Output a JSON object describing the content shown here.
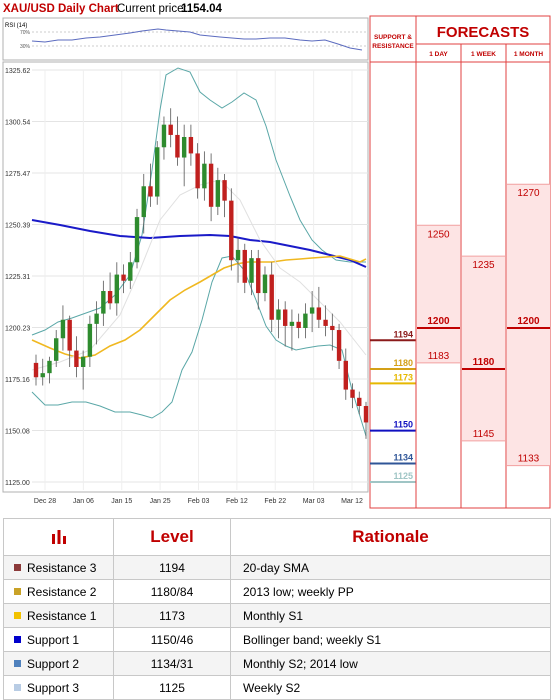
{
  "header": {
    "pair": "XAU/USD Daily Chart",
    "price_label": "Current price:",
    "price_value": "1154.04"
  },
  "rsi": {
    "label": "RSI (14)",
    "levels": [
      "70%",
      "30%"
    ]
  },
  "chart_data": {
    "type": "candlestick",
    "title": "XAU/USD Daily Chart",
    "ylim": [
      1125.0,
      1325.62
    ],
    "y_ticks": [
      "1325.62",
      "1300.54",
      "1275.47",
      "1250.39",
      "1225.31",
      "1200.23",
      "1175.16",
      "1150.08",
      "1125.00"
    ],
    "x_ticks": [
      "Dec 28",
      "Jan 06",
      "Jan 15",
      "Jan 25",
      "Feb 03",
      "Feb 12",
      "Feb 22",
      "Mar 03",
      "Mar 12"
    ],
    "candles": [
      {
        "o": 1183,
        "h": 1187,
        "l": 1172,
        "c": 1176
      },
      {
        "o": 1176,
        "h": 1185,
        "l": 1172,
        "c": 1178
      },
      {
        "o": 1178,
        "h": 1186,
        "l": 1173,
        "c": 1184
      },
      {
        "o": 1184,
        "h": 1199,
        "l": 1181,
        "c": 1195
      },
      {
        "o": 1195,
        "h": 1211,
        "l": 1189,
        "c": 1204
      },
      {
        "o": 1204,
        "h": 1206,
        "l": 1181,
        "c": 1189
      },
      {
        "o": 1189,
        "h": 1196,
        "l": 1176,
        "c": 1181
      },
      {
        "o": 1181,
        "h": 1189,
        "l": 1170,
        "c": 1186
      },
      {
        "o": 1186,
        "h": 1206,
        "l": 1181,
        "c": 1202
      },
      {
        "o": 1202,
        "h": 1213,
        "l": 1192,
        "c": 1207
      },
      {
        "o": 1207,
        "h": 1223,
        "l": 1201,
        "c": 1218
      },
      {
        "o": 1218,
        "h": 1227,
        "l": 1209,
        "c": 1212
      },
      {
        "o": 1212,
        "h": 1232,
        "l": 1206,
        "c": 1226
      },
      {
        "o": 1226,
        "h": 1231,
        "l": 1217,
        "c": 1223
      },
      {
        "o": 1223,
        "h": 1237,
        "l": 1219,
        "c": 1232
      },
      {
        "o": 1232,
        "h": 1258,
        "l": 1229,
        "c": 1254
      },
      {
        "o": 1254,
        "h": 1275,
        "l": 1246,
        "c": 1269
      },
      {
        "o": 1269,
        "h": 1280,
        "l": 1259,
        "c": 1264
      },
      {
        "o": 1264,
        "h": 1291,
        "l": 1260,
        "c": 1288
      },
      {
        "o": 1288,
        "h": 1303,
        "l": 1282,
        "c": 1299
      },
      {
        "o": 1299,
        "h": 1307,
        "l": 1288,
        "c": 1294
      },
      {
        "o": 1294,
        "h": 1303,
        "l": 1279,
        "c": 1283
      },
      {
        "o": 1283,
        "h": 1299,
        "l": 1269,
        "c": 1293
      },
      {
        "o": 1293,
        "h": 1299,
        "l": 1279,
        "c": 1285
      },
      {
        "o": 1285,
        "h": 1290,
        "l": 1263,
        "c": 1268
      },
      {
        "o": 1268,
        "h": 1286,
        "l": 1262,
        "c": 1280
      },
      {
        "o": 1280,
        "h": 1285,
        "l": 1252,
        "c": 1259
      },
      {
        "o": 1259,
        "h": 1278,
        "l": 1255,
        "c": 1272
      },
      {
        "o": 1272,
        "h": 1275,
        "l": 1254,
        "c": 1262
      },
      {
        "o": 1262,
        "h": 1268,
        "l": 1228,
        "c": 1233
      },
      {
        "o": 1233,
        "h": 1244,
        "l": 1222,
        "c": 1238
      },
      {
        "o": 1238,
        "h": 1241,
        "l": 1217,
        "c": 1222
      },
      {
        "o": 1222,
        "h": 1238,
        "l": 1216,
        "c": 1234
      },
      {
        "o": 1234,
        "h": 1238,
        "l": 1209,
        "c": 1217
      },
      {
        "o": 1217,
        "h": 1230,
        "l": 1213,
        "c": 1226
      },
      {
        "o": 1226,
        "h": 1232,
        "l": 1198,
        "c": 1204
      },
      {
        "o": 1204,
        "h": 1214,
        "l": 1195,
        "c": 1209
      },
      {
        "o": 1209,
        "h": 1213,
        "l": 1191,
        "c": 1201
      },
      {
        "o": 1201,
        "h": 1209,
        "l": 1189,
        "c": 1203
      },
      {
        "o": 1203,
        "h": 1207,
        "l": 1195,
        "c": 1200
      },
      {
        "o": 1200,
        "h": 1212,
        "l": 1195,
        "c": 1207
      },
      {
        "o": 1207,
        "h": 1218,
        "l": 1198,
        "c": 1210
      },
      {
        "o": 1210,
        "h": 1220,
        "l": 1200,
        "c": 1204
      },
      {
        "o": 1204,
        "h": 1211,
        "l": 1196,
        "c": 1201
      },
      {
        "o": 1201,
        "h": 1207,
        "l": 1189,
        "c": 1199
      },
      {
        "o": 1199,
        "h": 1202,
        "l": 1180,
        "c": 1184
      },
      {
        "o": 1184,
        "h": 1190,
        "l": 1165,
        "c": 1170
      },
      {
        "o": 1170,
        "h": 1173,
        "l": 1161,
        "c": 1166
      },
      {
        "o": 1166,
        "h": 1169,
        "l": 1158,
        "c": 1162
      },
      {
        "o": 1162,
        "h": 1164,
        "l": 1146,
        "c": 1154
      }
    ],
    "overlays": [
      "20-day SMA",
      "100-day SMA",
      "200-day SMA",
      "Bollinger bands"
    ],
    "grid": true
  },
  "levels_column": {
    "title_line1": "SUPPORT &",
    "title_line2": "RESISTANCE",
    "items": [
      {
        "label": "1194",
        "value": 1194,
        "color": "#8b1a1a"
      },
      {
        "label": "1180",
        "value": 1180,
        "color": "#d4a017"
      },
      {
        "label": "1173",
        "value": 1173,
        "color": "#e6b800"
      },
      {
        "label": "1150",
        "value": 1150,
        "color": "#1010c0"
      },
      {
        "label": "1134",
        "value": 1134,
        "color": "#2f5597"
      },
      {
        "label": "1125",
        "value": 1125,
        "color": "#9fc5c5"
      }
    ]
  },
  "forecasts": {
    "title": "FORECASTS",
    "columns": [
      {
        "label": "1 DAY",
        "high": "1250",
        "high_v": 1250,
        "mid": "1200",
        "mid_v": 1200,
        "low": "1183",
        "low_v": 1183
      },
      {
        "label": "1 WEEK",
        "high": "1235",
        "high_v": 1235,
        "mid": "1180",
        "mid_v": 1180,
        "low": "1145",
        "low_v": 1145
      },
      {
        "label": "1 MONTH",
        "high": "1270",
        "high_v": 1270,
        "mid": "1200",
        "mid_v": 1200,
        "low": "1133",
        "low_v": 1133
      }
    ]
  },
  "table": {
    "col_level": "Level",
    "col_rationale": "Rationale",
    "rows": [
      {
        "name": "Resistance 3",
        "level": "1194",
        "rationale": "20-day SMA",
        "color": "#8b3a3a"
      },
      {
        "name": "Resistance 2",
        "level": "1180/84",
        "rationale": "2013 low; weekly PP",
        "color": "#c9a227"
      },
      {
        "name": "Resistance 1",
        "level": "1173",
        "rationale": "Monthly S1",
        "color": "#f2c200"
      },
      {
        "name": "Support 1",
        "level": "1150/46",
        "rationale": "Bollinger band; weekly S1",
        "color": "#0000cc"
      },
      {
        "name": "Support 2",
        "level": "1134/31",
        "rationale": "Monthly S2; 2014 low",
        "color": "#4f81bd"
      },
      {
        "name": "Support 3",
        "level": "1125",
        "rationale": "Weekly S2",
        "color": "#b8cce4"
      }
    ]
  }
}
